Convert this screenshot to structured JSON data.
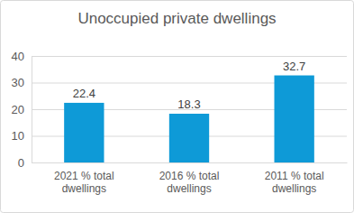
{
  "chart_data": {
    "type": "bar",
    "title": "Unoccupied private dwellings",
    "categories": [
      "2021 % total dwellings",
      "2016 % total dwellings",
      "2011 % total dwellings"
    ],
    "values": [
      22.4,
      18.3,
      32.7
    ],
    "color": "#0e9ad7",
    "ylim": [
      0,
      40
    ],
    "yticks": [
      0,
      10,
      20,
      30,
      40
    ],
    "grid": true,
    "data_labels": true
  }
}
